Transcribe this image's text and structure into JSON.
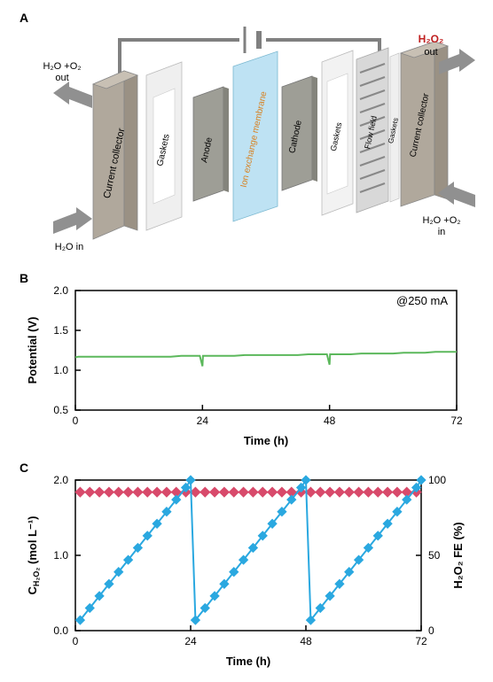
{
  "panelA": {
    "label": "A",
    "arrows": {
      "top_left": "H₂O +O₂\nout",
      "bottom_left": "H₂O in",
      "top_right": "H₂O₂\nout",
      "top_right_color": "#c02020",
      "bottom_right": "H₂O +O₂\nin"
    },
    "layers": [
      {
        "name": "Current collector",
        "color": "#b8b2a8"
      },
      {
        "name": "Gaskets",
        "color": "#e8e8e8"
      },
      {
        "name": "Anode",
        "color": "#9a9a92"
      },
      {
        "name": "Ion exchange membrane",
        "color": "#a8d8ef",
        "label_color": "#d88020"
      },
      {
        "name": "Cathode",
        "color": "#9a9a92"
      },
      {
        "name": "Gaskets",
        "color": "#e8e8e8"
      },
      {
        "name": "Flow field",
        "color": "#c0c0c0"
      },
      {
        "name": "Gaskets",
        "color": "#e8e8e8"
      },
      {
        "name": "Current collector",
        "color": "#b8b2a8"
      }
    ]
  },
  "panelB": {
    "label": "B",
    "annotation": "@250 mA",
    "xlabel": "Time (h)",
    "ylabel": "Potential (V)",
    "xlim": [
      0,
      72
    ],
    "ylim": [
      0.5,
      2.0
    ],
    "xticks": [
      0,
      24,
      48,
      72
    ],
    "yticks": [
      0.5,
      1.0,
      1.5,
      2.0
    ],
    "series": {
      "color": "#5cb85c",
      "width": 2,
      "data": [
        [
          0,
          1.16
        ],
        [
          0.5,
          1.17
        ],
        [
          1,
          1.17
        ],
        [
          2,
          1.17
        ],
        [
          4,
          1.17
        ],
        [
          6,
          1.17
        ],
        [
          8,
          1.17
        ],
        [
          10,
          1.17
        ],
        [
          12,
          1.17
        ],
        [
          14,
          1.17
        ],
        [
          16,
          1.17
        ],
        [
          18,
          1.17
        ],
        [
          20,
          1.18
        ],
        [
          22,
          1.18
        ],
        [
          23.5,
          1.18
        ],
        [
          24,
          1.05
        ],
        [
          24.1,
          1.18
        ],
        [
          26,
          1.18
        ],
        [
          28,
          1.18
        ],
        [
          30,
          1.18
        ],
        [
          32,
          1.19
        ],
        [
          34,
          1.19
        ],
        [
          36,
          1.19
        ],
        [
          38,
          1.19
        ],
        [
          40,
          1.19
        ],
        [
          42,
          1.19
        ],
        [
          44,
          1.2
        ],
        [
          46,
          1.2
        ],
        [
          47.5,
          1.2
        ],
        [
          48,
          1.07
        ],
        [
          48.1,
          1.2
        ],
        [
          50,
          1.2
        ],
        [
          52,
          1.2
        ],
        [
          54,
          1.21
        ],
        [
          56,
          1.21
        ],
        [
          58,
          1.21
        ],
        [
          60,
          1.21
        ],
        [
          62,
          1.22
        ],
        [
          64,
          1.22
        ],
        [
          66,
          1.22
        ],
        [
          68,
          1.23
        ],
        [
          70,
          1.23
        ],
        [
          72,
          1.23
        ]
      ]
    },
    "plot_bg": "#ffffff"
  },
  "panelC": {
    "label": "C",
    "xlabel": "Time (h)",
    "ylabel_left": "C_H₂O₂ (mol L⁻¹)",
    "ylabel_right": "H₂O₂ FE (%)",
    "xlim": [
      0,
      72
    ],
    "ylim_left": [
      0,
      2.0
    ],
    "ylim_right": [
      0,
      100
    ],
    "xticks": [
      0,
      24,
      48,
      72
    ],
    "yticks_left": [
      0,
      1.0,
      2.0
    ],
    "yticks_right": [
      0,
      50,
      100
    ],
    "series_conc": {
      "color": "#2aa8e0",
      "marker": "square",
      "marker_size": 7,
      "line_width": 2,
      "data": [
        [
          1,
          0.14
        ],
        [
          3,
          0.3
        ],
        [
          5,
          0.46
        ],
        [
          7,
          0.62
        ],
        [
          9,
          0.78
        ],
        [
          11,
          0.94
        ],
        [
          13,
          1.1
        ],
        [
          15,
          1.26
        ],
        [
          17,
          1.42
        ],
        [
          19,
          1.58
        ],
        [
          21,
          1.74
        ],
        [
          23,
          1.9
        ],
        [
          24,
          2.0
        ],
        [
          25,
          0.14
        ],
        [
          27,
          0.3
        ],
        [
          29,
          0.46
        ],
        [
          31,
          0.62
        ],
        [
          33,
          0.78
        ],
        [
          35,
          0.94
        ],
        [
          37,
          1.1
        ],
        [
          39,
          1.26
        ],
        [
          41,
          1.42
        ],
        [
          43,
          1.58
        ],
        [
          45,
          1.74
        ],
        [
          47,
          1.9
        ],
        [
          48,
          2.0
        ],
        [
          49,
          0.14
        ],
        [
          51,
          0.3
        ],
        [
          53,
          0.46
        ],
        [
          55,
          0.62
        ],
        [
          57,
          0.78
        ],
        [
          59,
          0.94
        ],
        [
          61,
          1.1
        ],
        [
          63,
          1.26
        ],
        [
          65,
          1.42
        ],
        [
          67,
          1.58
        ],
        [
          69,
          1.74
        ],
        [
          71,
          1.9
        ],
        [
          72,
          2.0
        ]
      ]
    },
    "series_fe": {
      "color": "#d84a6b",
      "marker": "diamond",
      "marker_size": 7,
      "line_width": 2,
      "data": [
        [
          1,
          92
        ],
        [
          3,
          92
        ],
        [
          5,
          92
        ],
        [
          7,
          92
        ],
        [
          9,
          92
        ],
        [
          11,
          92
        ],
        [
          13,
          92
        ],
        [
          15,
          92
        ],
        [
          17,
          92
        ],
        [
          19,
          92
        ],
        [
          21,
          92
        ],
        [
          23,
          92
        ],
        [
          25,
          92
        ],
        [
          27,
          92
        ],
        [
          29,
          92
        ],
        [
          31,
          92
        ],
        [
          33,
          92
        ],
        [
          35,
          92
        ],
        [
          37,
          92
        ],
        [
          39,
          92
        ],
        [
          41,
          92
        ],
        [
          43,
          92
        ],
        [
          45,
          92
        ],
        [
          47,
          92
        ],
        [
          49,
          92
        ],
        [
          51,
          92
        ],
        [
          53,
          92
        ],
        [
          55,
          92
        ],
        [
          57,
          92
        ],
        [
          59,
          92
        ],
        [
          61,
          92
        ],
        [
          63,
          92
        ],
        [
          65,
          92
        ],
        [
          67,
          92
        ],
        [
          69,
          92
        ],
        [
          71,
          92
        ]
      ]
    },
    "plot_bg": "#ffffff"
  }
}
